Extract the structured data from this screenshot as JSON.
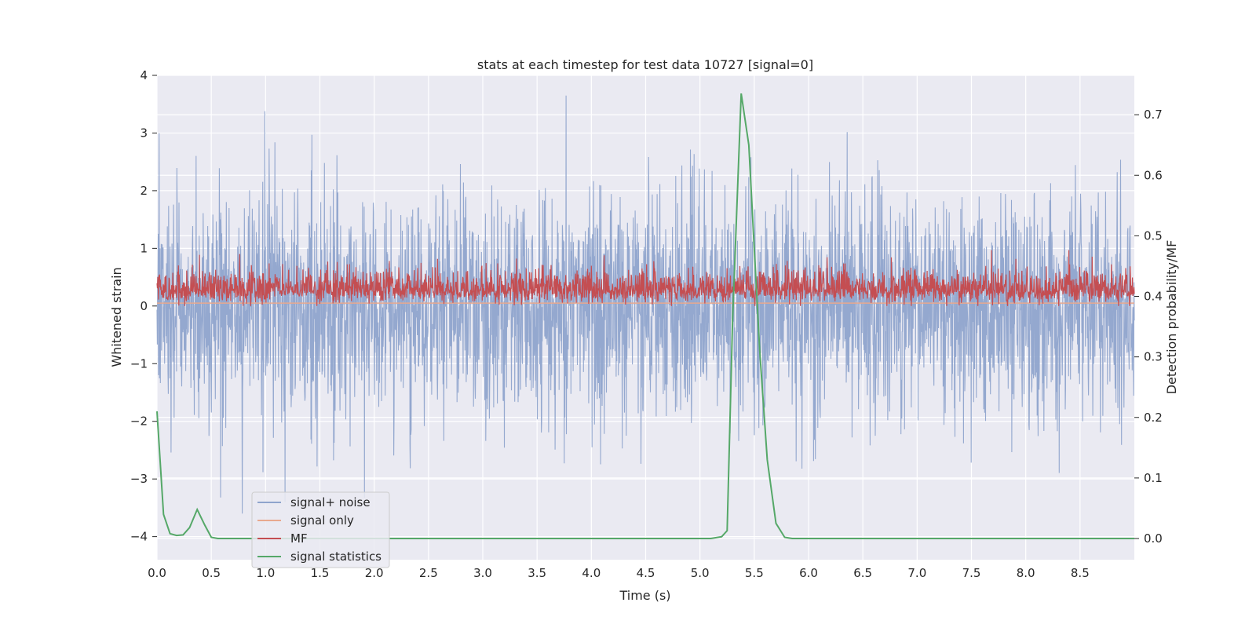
{
  "chart_data": {
    "type": "line",
    "title": "stats at each timestep for test data 10727 [signal=0]",
    "xlabel": "Time (s)",
    "ylabel_left": "Whitened strain",
    "ylabel_right": "Detection probability/MF",
    "xlim": [
      0.0,
      9.0
    ],
    "ylim_left": [
      -4.4,
      4.0
    ],
    "ylim_right": [
      -0.035,
      0.765
    ],
    "x_ticks": [
      "0.0",
      "0.5",
      "1.0",
      "1.5",
      "2.0",
      "2.5",
      "3.0",
      "3.5",
      "4.0",
      "4.5",
      "5.0",
      "5.5",
      "6.0",
      "6.5",
      "7.0",
      "7.5",
      "8.0",
      "8.5"
    ],
    "y_ticks_left": [
      "4",
      "3",
      "2",
      "1",
      "0",
      "−1",
      "−2",
      "−3",
      "−4"
    ],
    "y_ticks_right": [
      "0.7",
      "0.6",
      "0.5",
      "0.4",
      "0.3",
      "0.2",
      "0.1",
      "0.0"
    ],
    "grid": true,
    "legend_position": "lower-left",
    "series": [
      {
        "name": "signal+ noise",
        "color": "#8fa4cc",
        "axis": "left",
        "style": "dense-noise",
        "envelope": {
          "min": -3.6,
          "max": 3.65,
          "typical_min": -2.0,
          "typical_max": 2.2
        }
      },
      {
        "name": "signal only",
        "color": "#e8a98e",
        "axis": "left",
        "style": "flat",
        "value": 0.05
      },
      {
        "name": "MF",
        "color": "#c44e52",
        "axis": "left",
        "style": "dense-noise",
        "envelope": {
          "min": 0.0,
          "max": 0.97,
          "typical_min": 0.05,
          "typical_max": 0.6
        }
      },
      {
        "name": "signal statistics",
        "color": "#55a868",
        "axis": "right",
        "x": [
          0.0,
          0.06,
          0.12,
          0.18,
          0.24,
          0.3,
          0.37,
          0.44,
          0.5,
          0.56,
          1.0,
          2.0,
          3.0,
          4.0,
          5.0,
          5.1,
          5.2,
          5.25,
          5.3,
          5.38,
          5.45,
          5.5,
          5.55,
          5.62,
          5.7,
          5.78,
          5.85,
          6.0,
          7.0,
          8.0,
          9.0
        ],
        "y": [
          0.21,
          0.04,
          0.008,
          0.005,
          0.006,
          0.018,
          0.048,
          0.022,
          0.002,
          0.0,
          0.0,
          0.0,
          0.0,
          0.0,
          0.0,
          0.0,
          0.003,
          0.013,
          0.36,
          0.735,
          0.65,
          0.48,
          0.31,
          0.13,
          0.025,
          0.002,
          0.0,
          0.0,
          0.0,
          0.0,
          0.0
        ]
      }
    ]
  }
}
